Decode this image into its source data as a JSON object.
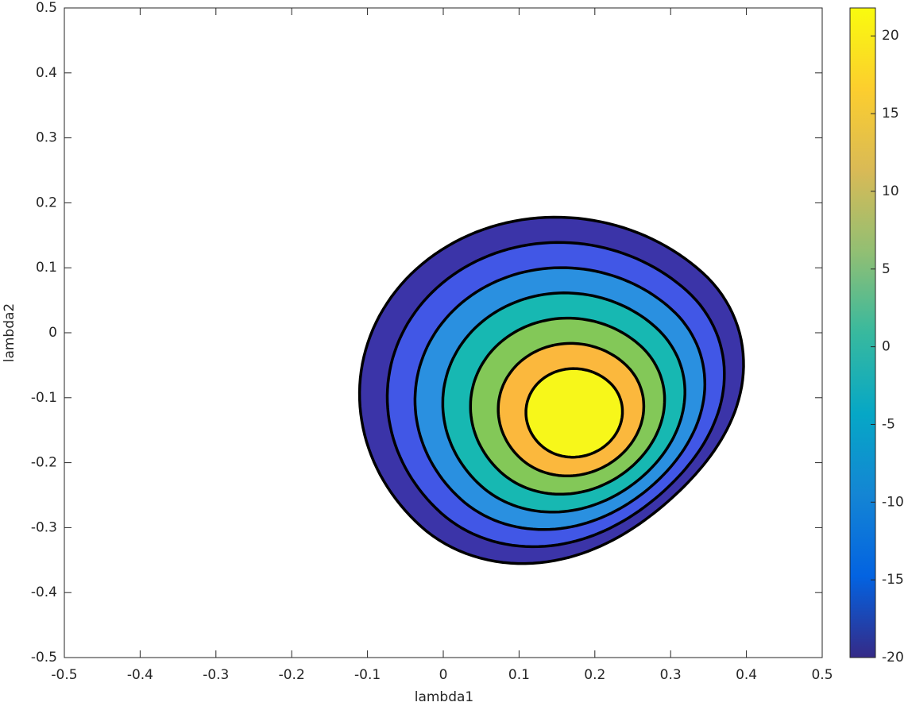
{
  "chart_data": {
    "type": "contourf",
    "xlabel": "lambda1",
    "ylabel": "lambda2",
    "xlim": [
      -0.5,
      0.5
    ],
    "ylim": [
      -0.5,
      0.5
    ],
    "xticks": [
      -0.5,
      -0.4,
      -0.3,
      -0.2,
      -0.1,
      0,
      0.1,
      0.2,
      0.3,
      0.4,
      0.5
    ],
    "yticks": [
      -0.5,
      -0.4,
      -0.3,
      -0.2,
      -0.1,
      0,
      0.1,
      0.2,
      0.3,
      0.4,
      0.5
    ],
    "levels": [
      -20,
      -14,
      -8,
      -2,
      4,
      10,
      16
    ],
    "colors": [
      "#3b34a8",
      "#4157e6",
      "#2a90e0",
      "#17b8b2",
      "#83c858",
      "#fbb83d",
      "#f7f71a"
    ],
    "clim": [
      -20,
      21.8
    ],
    "cticks": [
      -20,
      -15,
      -10,
      -5,
      0,
      5,
      10,
      15,
      20
    ],
    "colormap": [
      "#352a87",
      "#0363e1",
      "#1485d4",
      "#06a7c6",
      "#38b99e",
      "#92bf73",
      "#d9ba56",
      "#fcce2e",
      "#f9fb0e"
    ]
  }
}
